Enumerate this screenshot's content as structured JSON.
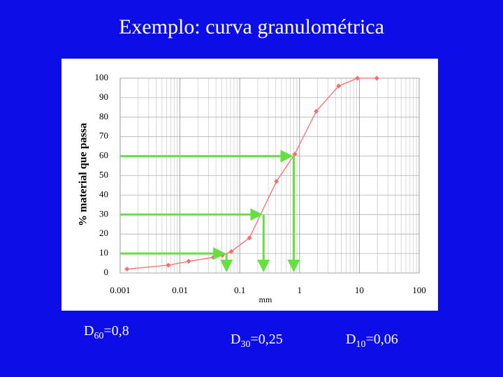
{
  "chart_data": {
    "type": "line",
    "title": "Exemplo: curva granulométrica",
    "ylabel": "% material que passa",
    "xlabel": "mm",
    "xscale": "log",
    "grid": true,
    "x": [
      0.0013,
      0.0064,
      0.014,
      0.036,
      0.051,
      0.072,
      0.145,
      0.41,
      0.83,
      1.9,
      4.5,
      9.3,
      19.5
    ],
    "series": [
      {
        "color": "#ff6b6b",
        "values": [
          2,
          4,
          6,
          8,
          9,
          11,
          18,
          47,
          61,
          83,
          96,
          100,
          100
        ]
      }
    ],
    "xlim": [
      0.001,
      100
    ],
    "xticks": [
      0.001,
      0.01,
      0.1,
      1,
      10,
      100
    ],
    "ylim": [
      0,
      100
    ],
    "yticks": [
      0,
      10,
      20,
      30,
      40,
      50,
      60,
      70,
      80,
      90,
      100
    ],
    "arrow_color": "#66e040",
    "annotations": [
      {
        "text": "D",
        "sub": "60",
        "rest": "=0,8",
        "x": 0.8,
        "y": 60
      },
      {
        "text": "D",
        "sub": "30",
        "rest": "=0,25",
        "x": 0.25,
        "y": 30
      },
      {
        "text": "D",
        "sub": "10",
        "rest": "=0,06",
        "x": 0.06,
        "y": 10
      }
    ]
  }
}
